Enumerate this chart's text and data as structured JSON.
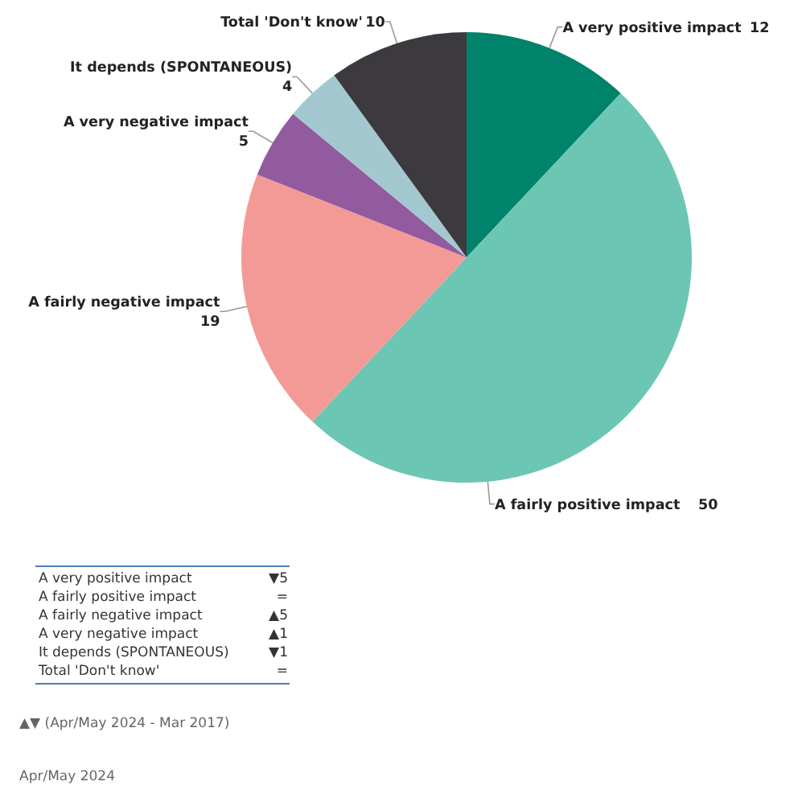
{
  "chart_data": {
    "type": "pie",
    "categories": [
      "A very positive impact",
      "A fairly positive impact",
      "A fairly negative impact",
      "A very negative impact",
      "It depends (SPONTANEOUS)",
      "Total 'Don't know'"
    ],
    "values": [
      12,
      50,
      19,
      5,
      4,
      10
    ],
    "colors": [
      "#00836b",
      "#6cc6b4",
      "#f39a97",
      "#935b9f",
      "#a4c8d0",
      "#3c3a3f"
    ],
    "data_labels": true,
    "annotations": [
      "▼5",
      "=",
      "▲5",
      "▲1",
      "▼1",
      "=",
      "▲▼ (Apr/May 2024 - Mar 2017)",
      "Apr/May 2024"
    ]
  }
}
